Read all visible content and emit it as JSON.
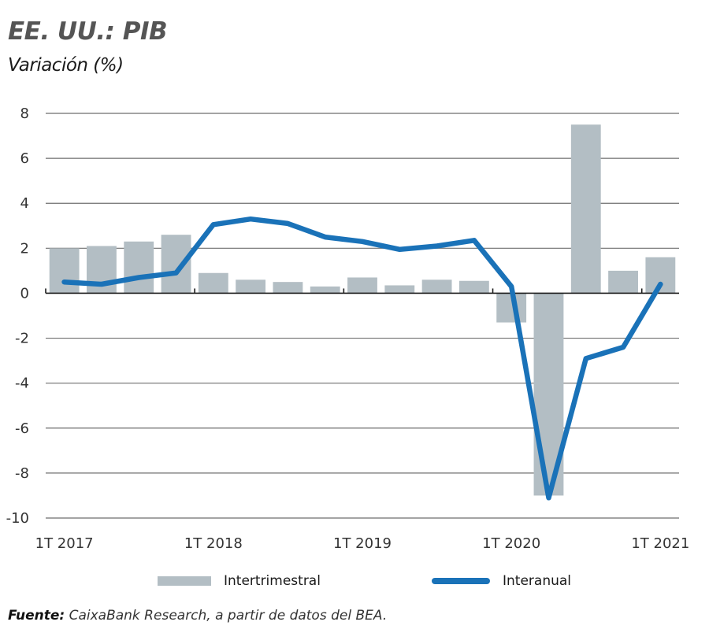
{
  "header": {
    "title": "EE. UU.: PIB",
    "subtitle": "Variación (%)"
  },
  "source": {
    "label": "Fuente:",
    "text": "CaixaBank Research, a partir de datos del BEA."
  },
  "colors": {
    "bar": "#b3bec4",
    "line": "#1a72b8",
    "grid": "#6e6e6e",
    "axis": "#1a1a1a"
  },
  "chart_data": {
    "type": "bar+line",
    "title": "EE. UU.: PIB",
    "subtitle": "Variación (%)",
    "xlabel": "",
    "ylabel": "",
    "ylim": [
      -10,
      8
    ],
    "yticks": [
      8,
      6,
      4,
      2,
      0,
      -2,
      -4,
      -6,
      -8,
      -10
    ],
    "ytick_labels": [
      "8",
      "6",
      "4",
      "2",
      "0",
      "-2",
      "-4",
      "-6",
      "-8",
      "-10"
    ],
    "grid": true,
    "legend_position": "bottom",
    "categories": [
      "1T 2017",
      "2T 2017",
      "3T 2017",
      "4T 2017",
      "1T 2018",
      "2T 2018",
      "3T 2018",
      "4T 2018",
      "1T 2019",
      "2T 2019",
      "3T 2019",
      "4T 2019",
      "1T 2020",
      "2T 2020",
      "3T 2020",
      "4T 2020",
      "1T 2021"
    ],
    "xtick_labels": [
      {
        "index": 0,
        "label": "1T 2017"
      },
      {
        "index": 4,
        "label": "1T 2018"
      },
      {
        "index": 8,
        "label": "1T 2019"
      },
      {
        "index": 12,
        "label": "1T 2020"
      },
      {
        "index": 16,
        "label": "1T 2021"
      }
    ],
    "series": [
      {
        "name": "Intertrimestral",
        "type": "bar",
        "values": [
          2.0,
          2.1,
          2.3,
          2.6,
          0.9,
          0.6,
          0.5,
          0.3,
          0.7,
          0.35,
          0.6,
          0.55,
          -1.3,
          -9.0,
          7.5,
          1.0,
          1.6
        ]
      },
      {
        "name": "Interanual",
        "type": "line",
        "values": [
          0.5,
          0.4,
          0.7,
          0.9,
          3.05,
          3.3,
          3.1,
          2.5,
          2.3,
          1.95,
          2.1,
          2.35,
          0.3,
          -9.1,
          -2.9,
          -2.4,
          0.4
        ]
      }
    ]
  }
}
